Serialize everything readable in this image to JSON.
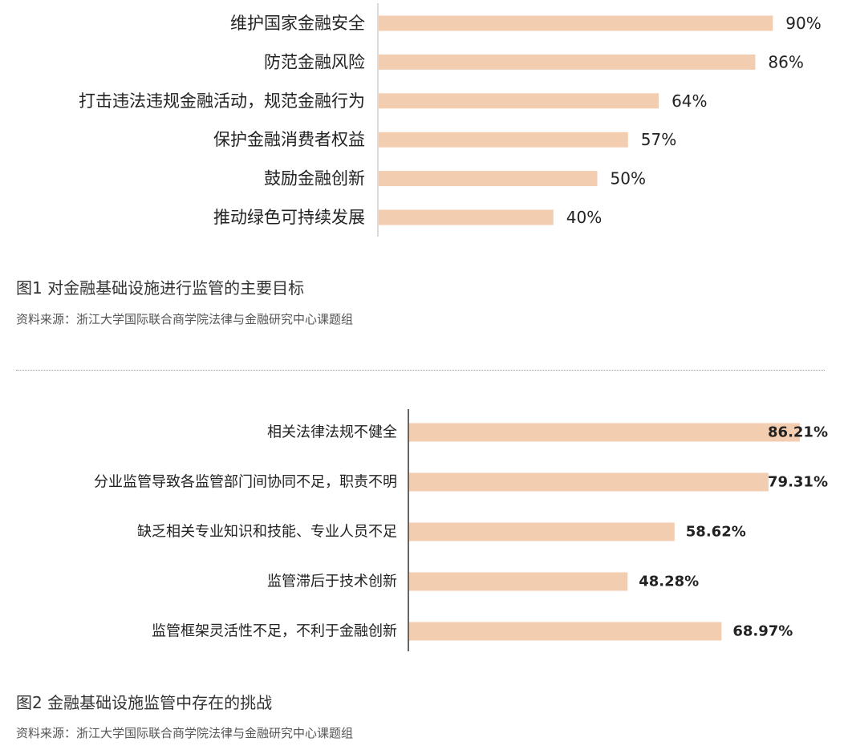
{
  "chart_data": [
    {
      "type": "bar",
      "orientation": "horizontal",
      "categories": [
        "维护国家金融安全",
        "防范金融风险",
        "打击违法违规金融活动，规范金融行为",
        "保护金融消费者权益",
        "鼓励金融创新",
        "推动绿色可持续发展"
      ],
      "values": [
        90,
        86,
        64,
        57,
        50,
        40
      ],
      "value_labels": [
        "90%",
        "86%",
        "64%",
        "57%",
        "50%",
        "40%"
      ],
      "xlim": [
        0,
        100
      ],
      "bar_color": "#f3cdb0",
      "grid": false
    },
    {
      "type": "bar",
      "orientation": "horizontal",
      "categories": [
        "相关法律法规不健全",
        "分业监管导致各监管部门间协同不足，职责不明",
        "缺乏相关专业知识和技能、专业人员不足",
        "监管滞后于技术创新",
        "监管框架灵活性不足，不利于金融创新"
      ],
      "values": [
        86.21,
        79.31,
        58.62,
        48.28,
        68.97
      ],
      "value_labels": [
        "86.21%",
        "79.31%",
        "58.62%",
        "48.28%",
        "68.97%"
      ],
      "xlim": [
        0,
        100
      ],
      "bar_color": "#f3cdb0",
      "grid": false
    }
  ],
  "captions": [
    {
      "title": "图1  对金融基础设施进行监管的主要目标",
      "source": "资料来源：浙江大学国际联合商学院法律与金融研究中心课题组"
    },
    {
      "title": "图2  金融基础设施监管中存在的挑战",
      "source": "资料来源：浙江大学国际联合商学院法律与金融研究中心课题组"
    }
  ]
}
